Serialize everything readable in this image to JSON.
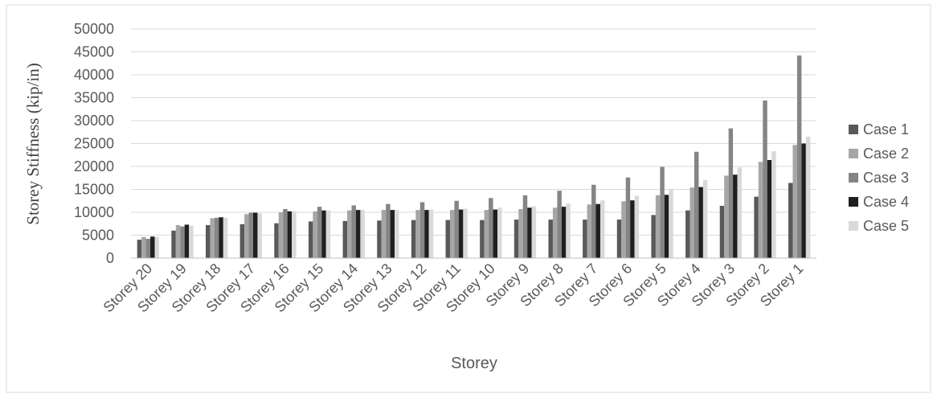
{
  "chart_data": {
    "type": "bar",
    "title": "",
    "xlabel": "Storey",
    "ylabel": "Storey Stiffness (kip/in)",
    "ylim": [
      0,
      50000
    ],
    "yticks": [
      0,
      5000,
      10000,
      15000,
      20000,
      25000,
      30000,
      35000,
      40000,
      45000,
      50000
    ],
    "grid": "horizontal",
    "legend_position": "right",
    "categories": [
      "Storey 20",
      "Storey 19",
      "Storey 18",
      "Storey 17",
      "Storey 16",
      "Storey 15",
      "Storey 14",
      "Storey 13",
      "Storey 12",
      "Storey 11",
      "Storey 10",
      "Storey 9",
      "Storey 8",
      "Storey 7",
      "Storey 6",
      "Storey 5",
      "Storey 4",
      "Storey 3",
      "Storey 2",
      "Storey 1"
    ],
    "series": [
      {
        "name": "Case 1",
        "color": "#595959",
        "values": [
          4000,
          6000,
          7200,
          7400,
          7600,
          8000,
          8100,
          8200,
          8300,
          8300,
          8300,
          8400,
          8400,
          8400,
          8400,
          9400,
          10400,
          11400,
          13400,
          16400
        ]
      },
      {
        "name": "Case 2",
        "color": "#a6a6a6",
        "values": [
          4600,
          7200,
          8700,
          9600,
          10000,
          10200,
          10400,
          10500,
          10500,
          10500,
          10500,
          10700,
          11000,
          11700,
          12400,
          13700,
          15400,
          18000,
          21000,
          24700
        ]
      },
      {
        "name": "Case 3",
        "color": "#858585",
        "values": [
          4200,
          6900,
          8800,
          9900,
          10700,
          11200,
          11500,
          11800,
          12200,
          12500,
          13100,
          13700,
          14700,
          16000,
          17600,
          19900,
          23200,
          28300,
          34400,
          44200
        ]
      },
      {
        "name": "Case 4",
        "color": "#1f1f1f",
        "values": [
          4700,
          7300,
          8900,
          9900,
          10200,
          10400,
          10500,
          10500,
          10500,
          10600,
          10600,
          11000,
          11200,
          11800,
          12600,
          13800,
          15500,
          18200,
          21400,
          25000
        ]
      },
      {
        "name": "Case 5",
        "color": "#d9d9d9",
        "values": [
          4600,
          7100,
          8800,
          9800,
          10200,
          10400,
          10500,
          10500,
          10600,
          10800,
          11000,
          11300,
          11900,
          12600,
          13600,
          14900,
          17000,
          19800,
          23300,
          26500
        ]
      }
    ]
  }
}
